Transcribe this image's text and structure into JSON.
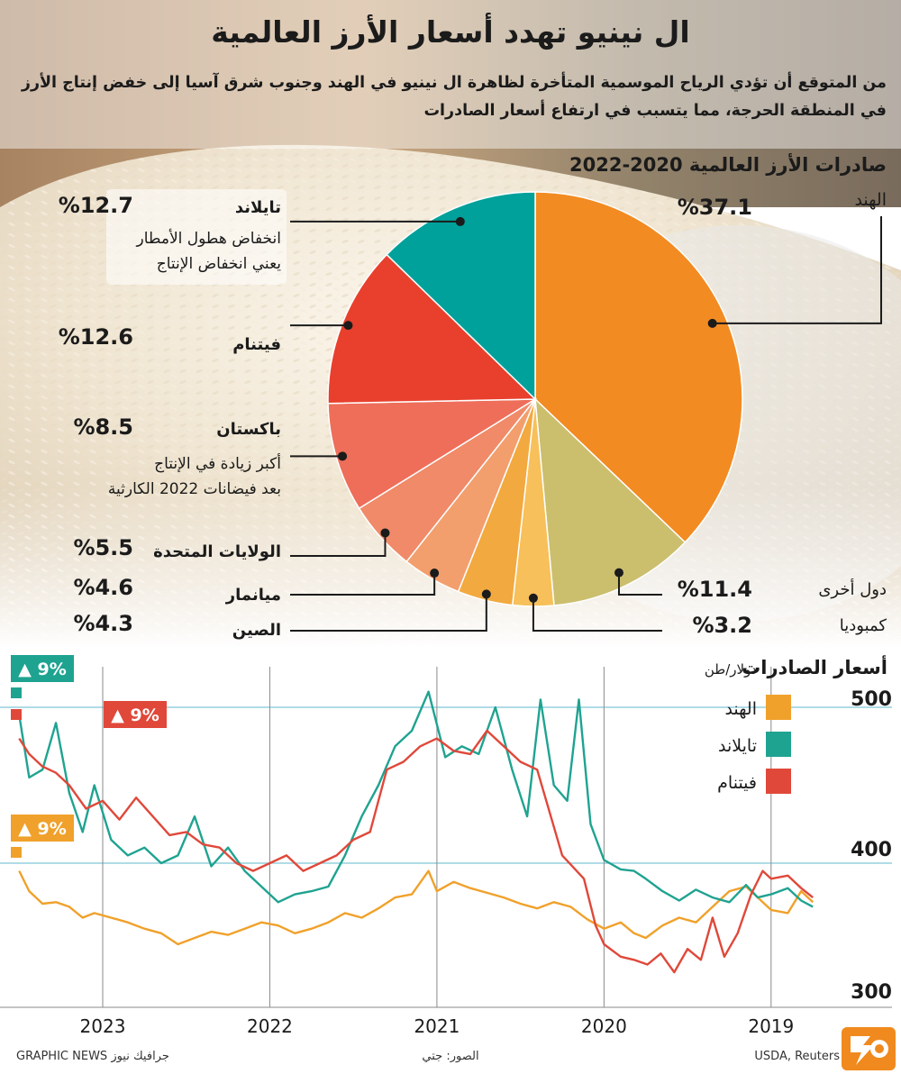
{
  "header": {
    "title": "ال نينيو تهدد أسعار الأرز العالمية",
    "subtitle_line1": "من المتوقع أن تؤدي الرياح الموسمية المتأخرة لظاهرة ال نينيو في الهند وجنوب شرق آسيا إلى خفض إنتاج الأرز",
    "subtitle_line2": "في المنطقة الحرجة، مما يتسبب في ارتفاع أسعار الصادرات"
  },
  "colors": {
    "india": "#f28b22",
    "other": "#cbbf6e",
    "cambodia": "#f7c05a",
    "china": "#f2a93f",
    "myanmar": "#f29f6d",
    "usa": "#f08a68",
    "pakistan": "#ee6e5a",
    "vietnam": "#e8402d",
    "thailand": "#00a19b",
    "line_india": "#f0a12b",
    "line_thailand": "#1fa391",
    "line_vietnam": "#e0483a",
    "gridline": "#7fc7d7"
  },
  "chart_data": [
    {
      "type": "pie",
      "title": "صادرات الأرز العالمية 2020-2022",
      "slices": [
        {
          "key": "india",
          "label": "الهند",
          "value": 37.1,
          "value_label": "%37.1",
          "note_lines": []
        },
        {
          "key": "other",
          "label": "دول أخرى",
          "value": 11.4,
          "value_label": "%11.4",
          "note_lines": []
        },
        {
          "key": "cambodia",
          "label": "كمبوديا",
          "value": 3.2,
          "value_label": "%3.2",
          "note_lines": []
        },
        {
          "key": "china",
          "label": "الصين",
          "value": 4.3,
          "value_label": "%4.3",
          "note_lines": []
        },
        {
          "key": "myanmar",
          "label": "ميانمار",
          "value": 4.6,
          "value_label": "%4.6",
          "note_lines": []
        },
        {
          "key": "usa",
          "label": "الولايات المتحدة",
          "value": 5.5,
          "value_label": "%5.5",
          "note_lines": []
        },
        {
          "key": "pakistan",
          "label": "باكستان",
          "value": 8.5,
          "value_label": "%8.5",
          "note_lines": [
            "أكبر زيادة في الإنتاج",
            "بعد فيضانات 2022 الكارثية"
          ]
        },
        {
          "key": "vietnam",
          "label": "فيتنام",
          "value": 12.6,
          "value_label": "%12.6",
          "note_lines": []
        },
        {
          "key": "thailand",
          "label": "تايلاند",
          "value": 12.7,
          "value_label": "%12.7",
          "note_lines": [
            "انخفاض هطول الأمطار",
            "يعني انخفاض الإنتاج"
          ]
        }
      ]
    },
    {
      "type": "line",
      "title": "أسعار الصادرات",
      "unit": "دولار/طن",
      "x_labels": [
        "2019",
        "2020",
        "2021",
        "2022",
        "2023"
      ],
      "x_range": [
        2018.6,
        2023.55
      ],
      "y_ticks": [
        300,
        400,
        500
      ],
      "ylim": [
        300,
        510
      ],
      "legend": [
        "الهند",
        "تايلاند",
        "فيتنام"
      ],
      "annotations": [
        {
          "series": "تايلاند",
          "text": "▲ 9%"
        },
        {
          "series": "فيتنام",
          "text": "▲ 9%"
        },
        {
          "series": "الهند",
          "text": "▲ 9%"
        }
      ],
      "series": [
        {
          "key": "india",
          "name": "الهند",
          "points": [
            [
              2018.75,
              375
            ],
            [
              2018.82,
              382
            ],
            [
              2018.9,
              368
            ],
            [
              2019.0,
              370
            ],
            [
              2019.08,
              378
            ],
            [
              2019.15,
              385
            ],
            [
              2019.25,
              382
            ],
            [
              2019.35,
              372
            ],
            [
              2019.45,
              362
            ],
            [
              2019.55,
              365
            ],
            [
              2019.65,
              360
            ],
            [
              2019.75,
              352
            ],
            [
              2019.82,
              355
            ],
            [
              2019.9,
              362
            ],
            [
              2020.0,
              358
            ],
            [
              2020.1,
              364
            ],
            [
              2020.2,
              372
            ],
            [
              2020.3,
              375
            ],
            [
              2020.4,
              371
            ],
            [
              2020.5,
              374
            ],
            [
              2020.6,
              378
            ],
            [
              2020.7,
              381
            ],
            [
              2020.8,
              384
            ],
            [
              2020.9,
              388
            ],
            [
              2021.0,
              382
            ],
            [
              2021.05,
              395
            ],
            [
              2021.15,
              380
            ],
            [
              2021.25,
              378
            ],
            [
              2021.35,
              371
            ],
            [
              2021.45,
              365
            ],
            [
              2021.55,
              368
            ],
            [
              2021.65,
              362
            ],
            [
              2021.75,
              358
            ],
            [
              2021.85,
              355
            ],
            [
              2021.95,
              360
            ],
            [
              2022.05,
              362
            ],
            [
              2022.15,
              358
            ],
            [
              2022.25,
              354
            ],
            [
              2022.35,
              356
            ],
            [
              2022.45,
              352
            ],
            [
              2022.55,
              348
            ],
            [
              2022.65,
              355
            ],
            [
              2022.75,
              358
            ],
            [
              2022.85,
              362
            ],
            [
              2022.95,
              365
            ],
            [
              2023.05,
              368
            ],
            [
              2023.12,
              365
            ],
            [
              2023.2,
              372
            ],
            [
              2023.28,
              375
            ],
            [
              2023.36,
              374
            ],
            [
              2023.44,
              382
            ],
            [
              2023.5,
              395
            ]
          ]
        },
        {
          "key": "thailand",
          "name": "تايلاند",
          "points": [
            [
              2018.75,
              372
            ],
            [
              2018.82,
              376
            ],
            [
              2018.9,
              384
            ],
            [
              2019.0,
              380
            ],
            [
              2019.08,
              378
            ],
            [
              2019.15,
              386
            ],
            [
              2019.25,
              375
            ],
            [
              2019.35,
              378
            ],
            [
              2019.45,
              383
            ],
            [
              2019.55,
              376
            ],
            [
              2019.65,
              382
            ],
            [
              2019.75,
              390
            ],
            [
              2019.82,
              395
            ],
            [
              2019.9,
              396
            ],
            [
              2020.0,
              402
            ],
            [
              2020.08,
              425
            ],
            [
              2020.15,
              505
            ],
            [
              2020.22,
              440
            ],
            [
              2020.3,
              450
            ],
            [
              2020.38,
              505
            ],
            [
              2020.46,
              430
            ],
            [
              2020.55,
              460
            ],
            [
              2020.65,
              500
            ],
            [
              2020.75,
              470
            ],
            [
              2020.85,
              475
            ],
            [
              2020.95,
              468
            ],
            [
              2021.05,
              510
            ],
            [
              2021.15,
              485
            ],
            [
              2021.25,
              475
            ],
            [
              2021.35,
              450
            ],
            [
              2021.45,
              430
            ],
            [
              2021.55,
              405
            ],
            [
              2021.65,
              385
            ],
            [
              2021.75,
              382
            ],
            [
              2021.85,
              380
            ],
            [
              2021.95,
              375
            ],
            [
              2022.05,
              385
            ],
            [
              2022.15,
              395
            ],
            [
              2022.25,
              410
            ],
            [
              2022.35,
              398
            ],
            [
              2022.45,
              430
            ],
            [
              2022.55,
              405
            ],
            [
              2022.65,
              400
            ],
            [
              2022.75,
              410
            ],
            [
              2022.85,
              405
            ],
            [
              2022.95,
              415
            ],
            [
              2023.05,
              450
            ],
            [
              2023.12,
              420
            ],
            [
              2023.2,
              445
            ],
            [
              2023.28,
              490
            ],
            [
              2023.36,
              460
            ],
            [
              2023.44,
              455
            ],
            [
              2023.5,
              495
            ]
          ]
        },
        {
          "key": "vietnam",
          "name": "فيتنام",
          "points": [
            [
              2018.75,
              378
            ],
            [
              2018.82,
              384
            ],
            [
              2018.9,
              392
            ],
            [
              2019.0,
              390
            ],
            [
              2019.05,
              395
            ],
            [
              2019.12,
              380
            ],
            [
              2019.2,
              355
            ],
            [
              2019.28,
              340
            ],
            [
              2019.35,
              365
            ],
            [
              2019.42,
              338
            ],
            [
              2019.5,
              345
            ],
            [
              2019.58,
              330
            ],
            [
              2019.66,
              342
            ],
            [
              2019.74,
              335
            ],
            [
              2019.82,
              338
            ],
            [
              2019.9,
              340
            ],
            [
              2020.0,
              348
            ],
            [
              2020.05,
              360
            ],
            [
              2020.12,
              390
            ],
            [
              2020.25,
              405
            ],
            [
              2020.4,
              460
            ],
            [
              2020.5,
              465
            ],
            [
              2020.6,
              475
            ],
            [
              2020.7,
              485
            ],
            [
              2020.8,
              470
            ],
            [
              2020.9,
              472
            ],
            [
              2021.0,
              480
            ],
            [
              2021.1,
              475
            ],
            [
              2021.2,
              465
            ],
            [
              2021.3,
              460
            ],
            [
              2021.4,
              420
            ],
            [
              2021.5,
              415
            ],
            [
              2021.6,
              405
            ],
            [
              2021.7,
              400
            ],
            [
              2021.8,
              395
            ],
            [
              2021.9,
              405
            ],
            [
              2022.0,
              400
            ],
            [
              2022.1,
              395
            ],
            [
              2022.2,
              400
            ],
            [
              2022.3,
              410
            ],
            [
              2022.4,
              412
            ],
            [
              2022.5,
              420
            ],
            [
              2022.6,
              418
            ],
            [
              2022.7,
              430
            ],
            [
              2022.8,
              442
            ],
            [
              2022.9,
              428
            ],
            [
              2023.0,
              440
            ],
            [
              2023.1,
              435
            ],
            [
              2023.2,
              450
            ],
            [
              2023.28,
              458
            ],
            [
              2023.36,
              462
            ],
            [
              2023.44,
              470
            ],
            [
              2023.5,
              480
            ]
          ]
        }
      ]
    }
  ],
  "footer": {
    "source": "USDA, Reuters المصدر:",
    "photo": "الصور: جتي",
    "credit": "GRAPHIC NEWS جرافيك نيوز"
  }
}
